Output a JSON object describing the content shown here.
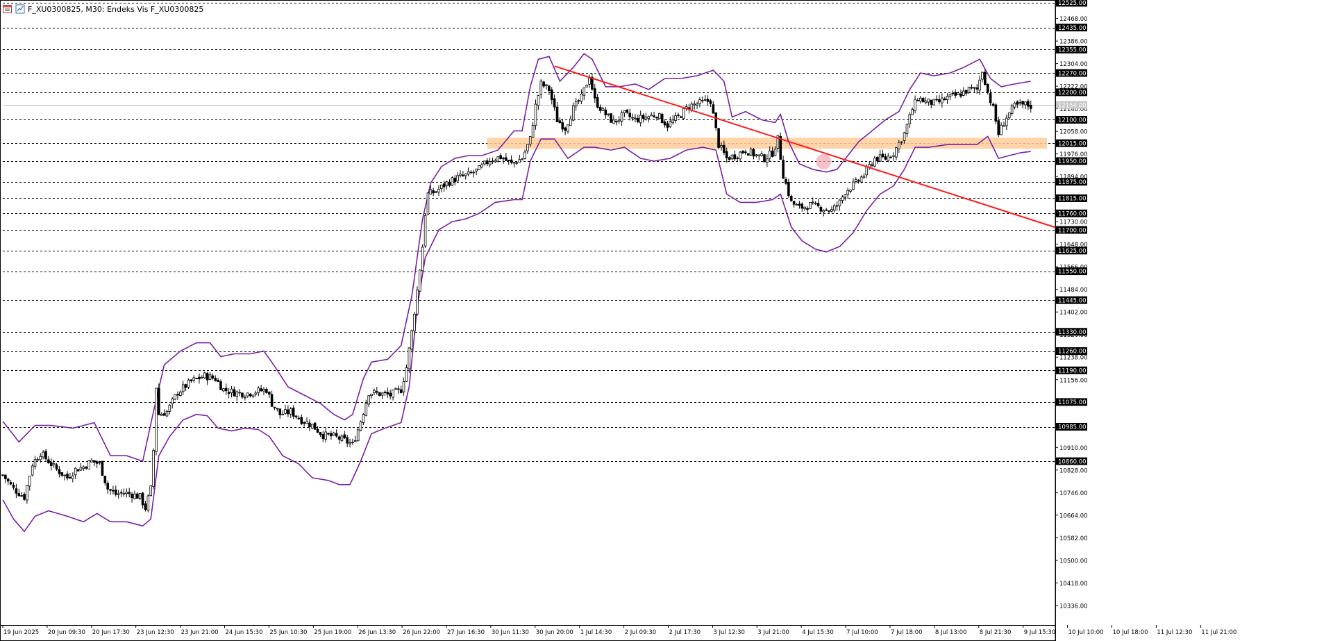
{
  "window": {
    "title": "F_XU0300825, M30:  Endeks Vis F_XU0300825"
  },
  "colors": {
    "background": "#ffffff",
    "candle": "#000000",
    "bollinger": "#7a1fa2",
    "trendline": "#ff1a1a",
    "support_zone": "#ffcc99",
    "highlight_circle": "#f4a6b5",
    "level_line": "#000000",
    "current_price_line": "#c0c0c0",
    "price_label_bg": "#000000",
    "price_label_text": "#ffffff"
  },
  "chart_data": {
    "type": "candlestick",
    "title": "F_XU0300825, M30:  Endeks Vis F_XU0300825",
    "ylim": [
      10265,
      12525
    ],
    "grid": false,
    "y_axis_ticks": [
      "12468.00",
      "12386.00",
      "12304.00",
      "12222.00",
      "12140.00",
      "12058.00",
      "11976.00",
      "11894.00",
      "11812.00",
      "11730.00",
      "11648.00",
      "11566.00",
      "11484.00",
      "11402.00",
      "11320.00",
      "11238.00",
      "11156.00",
      "11074.00",
      "10992.00",
      "10910.00",
      "10828.00",
      "10746.00",
      "10664.00",
      "10582.00",
      "10500.00",
      "10418.00",
      "10336.00"
    ],
    "level_labels": [
      "12525.00",
      "12435.00",
      "12355.00",
      "12270.00",
      "12200.00",
      "12100.00",
      "12015.00",
      "11950.00",
      "11875.00",
      "11815.00",
      "11760.00",
      "11700.00",
      "11625.00",
      "11550.00",
      "11445.00",
      "11330.00",
      "11260.00",
      "11190.00",
      "11075.00",
      "10985.00",
      "10860.00"
    ],
    "current_price": 12154,
    "current_price_label": "12154.00",
    "x_axis_labels": [
      "19 Jun 2025",
      "20 Jun 09:30",
      "20 Jun 17:30",
      "23 Jun 12:30",
      "23 Jun 21:00",
      "24 Jun 15:30",
      "25 Jun 10:30",
      "25 Jun 19:00",
      "26 Jun 13:30",
      "26 Jun 22:00",
      "27 Jun 16:30",
      "30 Jun 11:30",
      "30 Jun 20:00",
      "1 Jul 14:30",
      "2 Jul 09:30",
      "2 Jul 17:30",
      "3 Jul 12:30",
      "3 Jul 21:00",
      "4 Jul 15:30",
      "7 Jul 10:00",
      "7 Jul 18:00",
      "8 Jul 13:00",
      "8 Jul 21:30",
      "9 Jul 15:30",
      "10 Jul 10:00",
      "10 Jul 18:00",
      "11 Jul 12:30",
      "11 Jul 21:00"
    ],
    "close_path": [
      [
        0,
        10810
      ],
      [
        4,
        10760
      ],
      [
        8,
        10730
      ],
      [
        11,
        10850
      ],
      [
        14,
        10890
      ],
      [
        17,
        10860
      ],
      [
        20,
        10830
      ],
      [
        24,
        10800
      ],
      [
        27,
        10830
      ],
      [
        30,
        10840
      ],
      [
        33,
        10860
      ],
      [
        36,
        10850
      ],
      [
        39,
        10760
      ],
      [
        42,
        10740
      ],
      [
        45,
        10745
      ],
      [
        48,
        10740
      ],
      [
        51,
        10730
      ],
      [
        53,
        10690
      ],
      [
        55,
        10760
      ],
      [
        56,
        10900
      ],
      [
        57,
        11130
      ],
      [
        58,
        11030
      ],
      [
        61,
        11040
      ],
      [
        65,
        11110
      ],
      [
        70,
        11150
      ],
      [
        75,
        11170
      ],
      [
        79,
        11160
      ],
      [
        82,
        11120
      ],
      [
        86,
        11110
      ],
      [
        90,
        11105
      ],
      [
        95,
        11115
      ],
      [
        98,
        11120
      ],
      [
        100,
        11070
      ],
      [
        103,
        11030
      ],
      [
        107,
        11040
      ],
      [
        111,
        11010
      ],
      [
        115,
        10990
      ],
      [
        119,
        10955
      ],
      [
        123,
        10950
      ],
      [
        127,
        10935
      ],
      [
        130,
        10920
      ],
      [
        132,
        10975
      ],
      [
        134,
        11040
      ],
      [
        136,
        11110
      ],
      [
        140,
        11105
      ],
      [
        144,
        11100
      ],
      [
        148,
        11120
      ],
      [
        150,
        11200
      ],
      [
        152,
        11330
      ],
      [
        154,
        11480
      ],
      [
        156,
        11640
      ],
      [
        157,
        11760
      ],
      [
        158,
        11830
      ],
      [
        161,
        11840
      ],
      [
        165,
        11870
      ],
      [
        169,
        11890
      ],
      [
        173,
        11900
      ],
      [
        177,
        11920
      ],
      [
        181,
        11955
      ],
      [
        185,
        11965
      ],
      [
        189,
        11940
      ],
      [
        193,
        11960
      ],
      [
        196,
        12030
      ],
      [
        198,
        12150
      ],
      [
        200,
        12230
      ],
      [
        203,
        12210
      ],
      [
        206,
        12100
      ],
      [
        209,
        12070
      ],
      [
        212,
        12140
      ],
      [
        215,
        12180
      ],
      [
        218,
        12260
      ],
      [
        220,
        12170
      ],
      [
        223,
        12130
      ],
      [
        227,
        12090
      ],
      [
        231,
        12120
      ],
      [
        235,
        12100
      ],
      [
        239,
        12110
      ],
      [
        243,
        12120
      ],
      [
        247,
        12080
      ],
      [
        251,
        12110
      ],
      [
        255,
        12150
      ],
      [
        259,
        12160
      ],
      [
        263,
        12170
      ],
      [
        266,
        12010
      ],
      [
        269,
        11960
      ],
      [
        272,
        11970
      ],
      [
        276,
        11990
      ],
      [
        280,
        11970
      ],
      [
        283,
        11960
      ],
      [
        286,
        11980
      ],
      [
        288,
        12030
      ],
      [
        290,
        11900
      ],
      [
        293,
        11800
      ],
      [
        296,
        11780
      ],
      [
        300,
        11790
      ],
      [
        304,
        11780
      ],
      [
        308,
        11770
      ],
      [
        311,
        11800
      ],
      [
        313,
        11840
      ],
      [
        317,
        11870
      ],
      [
        320,
        11900
      ],
      [
        324,
        11960
      ],
      [
        328,
        11960
      ],
      [
        331,
        11980
      ],
      [
        335,
        12050
      ],
      [
        338,
        12140
      ],
      [
        340,
        12180
      ],
      [
        343,
        12165
      ],
      [
        347,
        12160
      ],
      [
        351,
        12180
      ],
      [
        355,
        12190
      ],
      [
        359,
        12210
      ],
      [
        362,
        12210
      ],
      [
        364,
        12280
      ],
      [
        366,
        12200
      ],
      [
        368,
        12140
      ],
      [
        370,
        12050
      ],
      [
        373,
        12110
      ],
      [
        376,
        12150
      ],
      [
        380,
        12155
      ],
      [
        382,
        12150
      ]
    ],
    "bollinger_upper": [
      [
        0,
        11005
      ],
      [
        6,
        10930
      ],
      [
        12,
        10990
      ],
      [
        18,
        10990
      ],
      [
        26,
        10980
      ],
      [
        34,
        11000
      ],
      [
        40,
        10880
      ],
      [
        46,
        10880
      ],
      [
        52,
        10860
      ],
      [
        56,
        11040
      ],
      [
        60,
        11210
      ],
      [
        66,
        11260
      ],
      [
        72,
        11290
      ],
      [
        77,
        11290
      ],
      [
        81,
        11240
      ],
      [
        86,
        11250
      ],
      [
        92,
        11250
      ],
      [
        97,
        11260
      ],
      [
        101,
        11205
      ],
      [
        106,
        11130
      ],
      [
        112,
        11100
      ],
      [
        118,
        11070
      ],
      [
        123,
        11030
      ],
      [
        127,
        11010
      ],
      [
        130,
        11030
      ],
      [
        134,
        11160
      ],
      [
        137,
        11220
      ],
      [
        143,
        11230
      ],
      [
        148,
        11280
      ],
      [
        152,
        11460
      ],
      [
        156,
        11740
      ],
      [
        159,
        11870
      ],
      [
        163,
        11930
      ],
      [
        168,
        11960
      ],
      [
        173,
        11970
      ],
      [
        178,
        11970
      ],
      [
        184,
        11990
      ],
      [
        190,
        12060
      ],
      [
        193,
        12060
      ],
      [
        196,
        12220
      ],
      [
        199,
        12320
      ],
      [
        203,
        12330
      ],
      [
        207,
        12240
      ],
      [
        212,
        12290
      ],
      [
        216,
        12340
      ],
      [
        219,
        12320
      ],
      [
        224,
        12220
      ],
      [
        229,
        12220
      ],
      [
        235,
        12230
      ],
      [
        240,
        12210
      ],
      [
        246,
        12250
      ],
      [
        252,
        12250
      ],
      [
        258,
        12260
      ],
      [
        264,
        12280
      ],
      [
        268,
        12240
      ],
      [
        271,
        12110
      ],
      [
        276,
        12130
      ],
      [
        282,
        12100
      ],
      [
        287,
        12090
      ],
      [
        289,
        12120
      ],
      [
        292,
        12020
      ],
      [
        296,
        11940
      ],
      [
        301,
        11920
      ],
      [
        306,
        11910
      ],
      [
        310,
        11920
      ],
      [
        314,
        11970
      ],
      [
        318,
        12020
      ],
      [
        323,
        12060
      ],
      [
        328,
        12100
      ],
      [
        333,
        12130
      ],
      [
        337,
        12210
      ],
      [
        341,
        12270
      ],
      [
        346,
        12260
      ],
      [
        352,
        12270
      ],
      [
        357,
        12290
      ],
      [
        363,
        12320
      ],
      [
        367,
        12250
      ],
      [
        371,
        12220
      ],
      [
        376,
        12230
      ],
      [
        382,
        12240
      ]
    ],
    "bollinger_lower": [
      [
        0,
        10720
      ],
      [
        4,
        10650
      ],
      [
        8,
        10605
      ],
      [
        12,
        10660
      ],
      [
        17,
        10680
      ],
      [
        24,
        10660
      ],
      [
        30,
        10640
      ],
      [
        35,
        10670
      ],
      [
        40,
        10640
      ],
      [
        46,
        10640
      ],
      [
        52,
        10625
      ],
      [
        55,
        10650
      ],
      [
        58,
        10880
      ],
      [
        62,
        10950
      ],
      [
        67,
        11010
      ],
      [
        72,
        11030
      ],
      [
        76,
        11025
      ],
      [
        80,
        10980
      ],
      [
        85,
        10970
      ],
      [
        90,
        10980
      ],
      [
        95,
        10975
      ],
      [
        99,
        10950
      ],
      [
        104,
        10880
      ],
      [
        110,
        10850
      ],
      [
        115,
        10800
      ],
      [
        121,
        10790
      ],
      [
        125,
        10775
      ],
      [
        129,
        10775
      ],
      [
        133,
        10860
      ],
      [
        137,
        10960
      ],
      [
        142,
        10980
      ],
      [
        148,
        11000
      ],
      [
        151,
        11130
      ],
      [
        154,
        11420
      ],
      [
        157,
        11600
      ],
      [
        162,
        11700
      ],
      [
        167,
        11730
      ],
      [
        172,
        11740
      ],
      [
        177,
        11760
      ],
      [
        183,
        11800
      ],
      [
        190,
        11810
      ],
      [
        193,
        11810
      ],
      [
        196,
        11950
      ],
      [
        200,
        12030
      ],
      [
        205,
        12030
      ],
      [
        210,
        11960
      ],
      [
        216,
        12000
      ],
      [
        220,
        12000
      ],
      [
        226,
        11990
      ],
      [
        231,
        12000
      ],
      [
        237,
        11960
      ],
      [
        242,
        11950
      ],
      [
        248,
        11960
      ],
      [
        254,
        11990
      ],
      [
        260,
        12000
      ],
      [
        265,
        11990
      ],
      [
        269,
        11830
      ],
      [
        274,
        11800
      ],
      [
        280,
        11800
      ],
      [
        286,
        11810
      ],
      [
        289,
        11830
      ],
      [
        293,
        11710
      ],
      [
        297,
        11660
      ],
      [
        302,
        11630
      ],
      [
        306,
        11620
      ],
      [
        311,
        11640
      ],
      [
        316,
        11690
      ],
      [
        321,
        11770
      ],
      [
        326,
        11830
      ],
      [
        331,
        11860
      ],
      [
        335,
        11920
      ],
      [
        339,
        12000
      ],
      [
        344,
        12000
      ],
      [
        351,
        12010
      ],
      [
        357,
        12010
      ],
      [
        362,
        12010
      ],
      [
        366,
        12040
      ],
      [
        370,
        11960
      ],
      [
        374,
        11970
      ],
      [
        378,
        11980
      ],
      [
        382,
        11985
      ]
    ],
    "trendline": {
      "from": [
        205,
        12295
      ],
      "to": [
        388,
        11710
      ]
    },
    "support_zone": {
      "x_range": [
        180,
        388
      ],
      "y_range": [
        11995,
        12035
      ]
    },
    "highlight_marker": {
      "center": [
        305,
        11948
      ]
    }
  }
}
